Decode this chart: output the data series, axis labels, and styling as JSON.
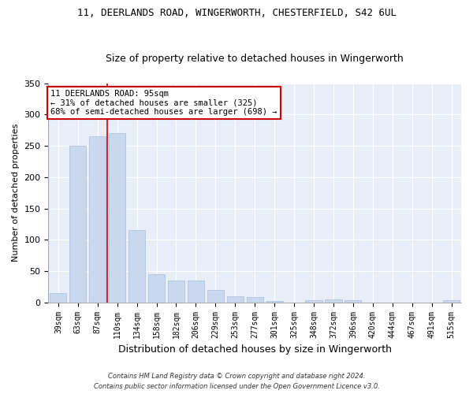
{
  "title": "11, DEERLANDS ROAD, WINGERWORTH, CHESTERFIELD, S42 6UL",
  "subtitle": "Size of property relative to detached houses in Wingerworth",
  "xlabel": "Distribution of detached houses by size in Wingerworth",
  "ylabel": "Number of detached properties",
  "bar_color": "#c8d8ee",
  "bar_edgecolor": "#aabbdd",
  "background_color": "#e8eef8",
  "grid_color": "#ffffff",
  "fig_background": "#ffffff",
  "categories": [
    "39sqm",
    "63sqm",
    "87sqm",
    "110sqm",
    "134sqm",
    "158sqm",
    "182sqm",
    "206sqm",
    "229sqm",
    "253sqm",
    "277sqm",
    "301sqm",
    "325sqm",
    "348sqm",
    "372sqm",
    "396sqm",
    "420sqm",
    "444sqm",
    "467sqm",
    "491sqm",
    "515sqm"
  ],
  "values": [
    15,
    250,
    265,
    270,
    115,
    45,
    35,
    35,
    20,
    10,
    8,
    2,
    0,
    3,
    5,
    3,
    0,
    0,
    0,
    0,
    3
  ],
  "vline_x": 2.5,
  "vline_color": "#cc0000",
  "annotation_line1": "11 DEERLANDS ROAD: 95sqm",
  "annotation_line2": "← 31% of detached houses are smaller (325)",
  "annotation_line3": "68% of semi-detached houses are larger (698) →",
  "annotation_box_color": "#ffffff",
  "annotation_box_edgecolor": "#cc0000",
  "ylim": [
    0,
    350
  ],
  "yticks": [
    0,
    50,
    100,
    150,
    200,
    250,
    300,
    350
  ],
  "title_fontsize": 9,
  "subtitle_fontsize": 9,
  "xlabel_fontsize": 9,
  "ylabel_fontsize": 8,
  "tick_fontsize": 8,
  "xtick_fontsize": 7,
  "footnote1": "Contains HM Land Registry data © Crown copyright and database right 2024.",
  "footnote2": "Contains public sector information licensed under the Open Government Licence v3.0."
}
